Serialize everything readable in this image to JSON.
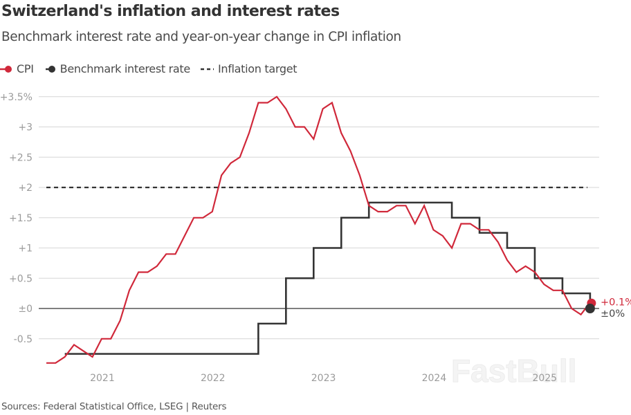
{
  "header": {
    "title": "Switzerland's inflation and interest rates",
    "subtitle": "Benchmark interest rate and year-on-year change in CPI inflation"
  },
  "legend": [
    {
      "label": "CPI",
      "icon": "line-dot-icon",
      "color": "#d0283a"
    },
    {
      "label": "Benchmark interest rate",
      "icon": "line-dot-icon",
      "color": "#333333"
    },
    {
      "label": "Inflation target",
      "icon": "dashed-line-icon",
      "color": "#333333"
    }
  ],
  "footer": {
    "source": "Sources: Federal Statistical Office, LSEG | Reuters"
  },
  "watermark": "FastBull",
  "chart_data": {
    "type": "line",
    "title": "Switzerland's inflation and interest rates",
    "subtitle": "Benchmark interest rate and year-on-year change in CPI inflation",
    "xlabel": "",
    "ylabel": "",
    "ylim": [
      -0.95,
      3.5
    ],
    "yticks": [
      -0.5,
      0,
      0.5,
      1,
      1.5,
      2,
      2.5,
      3,
      3.5
    ],
    "ytick_labels": [
      "-0.5",
      "±0",
      "+0.5",
      "+1",
      "+1.5",
      "+2",
      "+2.5",
      "+3",
      "+3.5%"
    ],
    "xticks": [
      {
        "label": "2021",
        "month_index": 6
      },
      {
        "label": "2022",
        "month_index": 18
      },
      {
        "label": "2023",
        "month_index": 30
      },
      {
        "label": "2024",
        "month_index": 42
      },
      {
        "label": "2025",
        "month_index": 54
      }
    ],
    "grid": true,
    "legend_position": "top-left",
    "x_start": "2020-07",
    "x": [
      "2020-07",
      "2020-08",
      "2020-09",
      "2020-10",
      "2020-11",
      "2020-12",
      "2021-01",
      "2021-02",
      "2021-03",
      "2021-04",
      "2021-05",
      "2021-06",
      "2021-07",
      "2021-08",
      "2021-09",
      "2021-10",
      "2021-11",
      "2021-12",
      "2022-01",
      "2022-02",
      "2022-03",
      "2022-04",
      "2022-05",
      "2022-06",
      "2022-07",
      "2022-08",
      "2022-09",
      "2022-10",
      "2022-11",
      "2022-12",
      "2023-01",
      "2023-02",
      "2023-03",
      "2023-04",
      "2023-05",
      "2023-06",
      "2023-07",
      "2023-08",
      "2023-09",
      "2023-10",
      "2023-11",
      "2023-12",
      "2024-01",
      "2024-02",
      "2024-03",
      "2024-04",
      "2024-05",
      "2024-06",
      "2024-07",
      "2024-08",
      "2024-09",
      "2024-10",
      "2024-11",
      "2024-12",
      "2025-01",
      "2025-02",
      "2025-03",
      "2025-04",
      "2025-05",
      "2025-06"
    ],
    "series": [
      {
        "name": "CPI",
        "color": "#d0283a",
        "style": "line",
        "values": [
          -0.9,
          -0.9,
          -0.8,
          -0.6,
          -0.7,
          -0.8,
          -0.5,
          -0.5,
          -0.2,
          0.3,
          0.6,
          0.6,
          0.7,
          0.9,
          0.9,
          1.2,
          1.5,
          1.5,
          1.6,
          2.2,
          2.4,
          2.5,
          2.9,
          3.4,
          3.4,
          3.5,
          3.3,
          3.0,
          3.0,
          2.8,
          3.3,
          3.4,
          2.9,
          2.6,
          2.2,
          1.7,
          1.6,
          1.6,
          1.7,
          1.7,
          1.4,
          1.7,
          1.3,
          1.2,
          1.0,
          1.4,
          1.4,
          1.3,
          1.3,
          1.1,
          0.8,
          0.6,
          0.7,
          0.6,
          0.4,
          0.3,
          0.3,
          0.0,
          -0.1,
          0.1
        ],
        "end_label": "+0.1%"
      },
      {
        "name": "Benchmark interest rate",
        "color": "#333333",
        "style": "step",
        "steps": [
          {
            "from": 2,
            "value": -0.75
          },
          {
            "from": 23,
            "value": -0.25
          },
          {
            "from": 26,
            "value": 0.5
          },
          {
            "from": 29,
            "value": 1.0
          },
          {
            "from": 32,
            "value": 1.5
          },
          {
            "from": 35,
            "value": 1.75
          },
          {
            "from": 44,
            "value": 1.5
          },
          {
            "from": 47,
            "value": 1.25
          },
          {
            "from": 50,
            "value": 1.0
          },
          {
            "from": 53,
            "value": 0.5
          },
          {
            "from": 56,
            "value": 0.25
          },
          {
            "from": 59,
            "value": 0.0
          }
        ],
        "end_label": "±0%"
      },
      {
        "name": "Inflation target",
        "color": "#333333",
        "style": "dashed",
        "value": 2.0,
        "from": 0,
        "to": 59
      }
    ]
  }
}
